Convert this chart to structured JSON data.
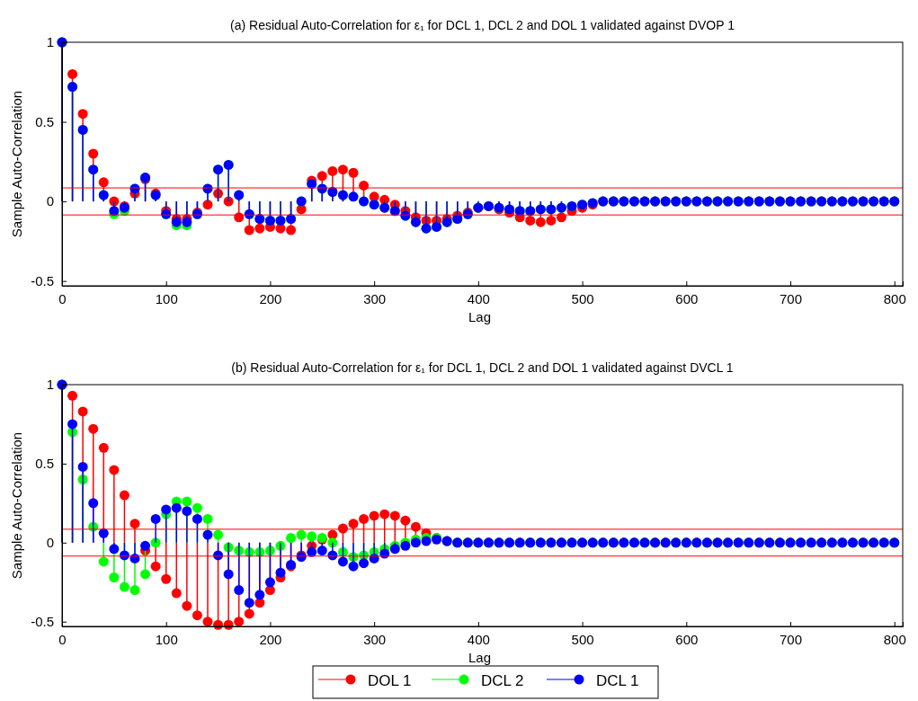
{
  "chart_data": [
    {
      "type": "lollipop",
      "title": "(a) Residual Auto-Correlation for ε₁ for DCL 1, DCL 2 and DOL 1 validated against DVOP 1",
      "xlabel": "Lag",
      "ylabel": "Sample Auto-Correlation",
      "x": [
        0,
        10,
        20,
        30,
        40,
        50,
        60,
        70,
        80,
        90,
        100,
        110,
        120,
        130,
        140,
        150,
        160,
        170,
        180,
        190,
        200,
        210,
        220,
        230,
        240,
        250,
        260,
        270,
        280,
        290,
        300,
        310,
        320,
        330,
        340,
        350,
        360,
        370,
        380,
        390,
        400,
        410,
        420,
        430,
        440,
        450,
        460,
        470,
        480,
        490,
        500,
        510,
        520,
        530,
        540,
        550,
        560,
        570,
        580,
        590,
        600,
        610,
        620,
        630,
        640,
        650,
        660,
        670,
        680,
        690,
        700,
        710,
        720,
        730,
        740,
        750,
        760,
        770,
        780,
        790,
        800
      ],
      "series": [
        {
          "color": "#ff0000",
          "values": [
            1,
            0.8,
            0.55,
            0.3,
            0.12,
            0,
            -0.03,
            0.05,
            0.14,
            0.05,
            -0.06,
            -0.11,
            -0.11,
            -0.07,
            -0.02,
            0.05,
            0,
            -0.1,
            -0.18,
            -0.17,
            -0.16,
            -0.17,
            -0.18,
            -0.05,
            0.13,
            0.16,
            0.19,
            0.2,
            0.18,
            0.1,
            0.03,
            0.01,
            -0.02,
            -0.06,
            -0.1,
            -0.12,
            -0.12,
            -0.11,
            -0.09,
            -0.07,
            -0.04,
            -0.03,
            -0.05,
            -0.07,
            -0.1,
            -0.12,
            -0.13,
            -0.12,
            -0.1,
            -0.06,
            -0.04,
            -0.02,
            0,
            0,
            0,
            0,
            0,
            0,
            0,
            0,
            0,
            0,
            0,
            0,
            0,
            0,
            0,
            0,
            0,
            0,
            0,
            0,
            0,
            0,
            0,
            0,
            0,
            0,
            0,
            0,
            0
          ]
        },
        {
          "color": "#00ff00",
          "values": [
            1,
            0.72,
            0.45,
            0.2,
            0.04,
            -0.08,
            -0.06,
            0.08,
            0.15,
            0.04,
            -0.08,
            -0.15,
            -0.15,
            -0.08,
            0.08,
            0.2,
            0.23,
            0.04,
            -0.08,
            -0.11,
            -0.12,
            -0.12,
            -0.11,
            0,
            0.11,
            0.08,
            0.06,
            0.04,
            0.03,
            0,
            -0.02,
            -0.04,
            -0.06,
            -0.09,
            -0.13,
            -0.17,
            -0.16,
            -0.13,
            -0.11,
            -0.08,
            -0.04,
            -0.03,
            -0.04,
            -0.05,
            -0.06,
            -0.06,
            -0.05,
            -0.05,
            -0.04,
            -0.03,
            -0.02,
            -0.01,
            0,
            0,
            0,
            0,
            0,
            0,
            0,
            0,
            0,
            0,
            0,
            0,
            0,
            0,
            0,
            0,
            0,
            0,
            0,
            0,
            0,
            0,
            0,
            0,
            0,
            0,
            0,
            0,
            0
          ]
        },
        {
          "color": "#0000ff",
          "values": [
            1,
            0.72,
            0.45,
            0.2,
            0.04,
            -0.06,
            -0.04,
            0.08,
            0.15,
            0.04,
            -0.08,
            -0.13,
            -0.13,
            -0.08,
            0.08,
            0.2,
            0.23,
            0.04,
            -0.08,
            -0.11,
            -0.12,
            -0.12,
            -0.11,
            0,
            0.11,
            0.08,
            0.06,
            0.04,
            0.03,
            0,
            -0.02,
            -0.04,
            -0.06,
            -0.09,
            -0.13,
            -0.17,
            -0.16,
            -0.13,
            -0.11,
            -0.08,
            -0.04,
            -0.03,
            -0.04,
            -0.05,
            -0.06,
            -0.06,
            -0.05,
            -0.05,
            -0.04,
            -0.03,
            -0.02,
            -0.01,
            0,
            0,
            0,
            0,
            0,
            0,
            0,
            0,
            0,
            0,
            0,
            0,
            0,
            0,
            0,
            0,
            0,
            0,
            0,
            0,
            0,
            0,
            0,
            0,
            0,
            0,
            0,
            0,
            0
          ]
        }
      ],
      "xlim": [
        0,
        808
      ],
      "xticks": [
        0,
        100,
        200,
        300,
        400,
        500,
        600,
        700,
        800
      ],
      "ylim": [
        -0.53,
        1
      ],
      "yticks": [
        -0.5,
        0,
        0.5,
        1
      ],
      "ref_lines": [
        {
          "axis": "y",
          "value": 0.085,
          "color": "#ff0000"
        },
        {
          "axis": "y",
          "value": -0.085,
          "color": "#ff0000"
        }
      ],
      "marker": "circle",
      "legend": false,
      "grid": false
    },
    {
      "type": "lollipop",
      "title": "(b) Residual Auto-Correlation for ε₁ for DCL 1, DCL 2 and DOL 1 validated against DVCL 1",
      "xlabel": "Lag",
      "ylabel": "Sample Auto-Correlation",
      "x": [
        0,
        10,
        20,
        30,
        40,
        50,
        60,
        70,
        80,
        90,
        100,
        110,
        120,
        130,
        140,
        150,
        160,
        170,
        180,
        190,
        200,
        210,
        220,
        230,
        240,
        250,
        260,
        270,
        280,
        290,
        300,
        310,
        320,
        330,
        340,
        350,
        360,
        370,
        380,
        390,
        400,
        410,
        420,
        430,
        440,
        450,
        460,
        470,
        480,
        490,
        500,
        510,
        520,
        530,
        540,
        550,
        560,
        570,
        580,
        590,
        600,
        610,
        620,
        630,
        640,
        650,
        660,
        670,
        680,
        690,
        700,
        710,
        720,
        730,
        740,
        750,
        760,
        770,
        780,
        790,
        800
      ],
      "series": [
        {
          "name": "DOL 1",
          "color": "#ff0000",
          "values": [
            1,
            0.93,
            0.83,
            0.72,
            0.6,
            0.46,
            0.3,
            0.12,
            -0.05,
            -0.15,
            -0.23,
            -0.32,
            -0.4,
            -0.46,
            -0.5,
            -0.52,
            -0.52,
            -0.5,
            -0.45,
            -0.38,
            -0.3,
            -0.22,
            -0.15,
            -0.08,
            -0.02,
            0.02,
            0.05,
            0.09,
            0.12,
            0.15,
            0.17,
            0.18,
            0.17,
            0.14,
            0.1,
            0.06,
            0.03,
            0.01,
            0,
            0,
            0,
            0,
            0,
            0,
            0,
            0,
            0,
            0,
            0,
            0,
            0,
            0,
            0,
            0,
            0,
            0,
            0,
            0,
            0,
            0,
            0,
            0,
            0,
            0,
            0,
            0,
            0,
            0,
            0,
            0,
            0,
            0,
            0,
            0,
            0,
            0,
            0,
            0,
            0,
            0,
            0
          ]
        },
        {
          "name": "DCL 2",
          "color": "#00ff00",
          "values": [
            1,
            0.7,
            0.4,
            0.1,
            -0.12,
            -0.22,
            -0.28,
            -0.3,
            -0.2,
            0,
            0.18,
            0.26,
            0.26,
            0.22,
            0.15,
            0.05,
            -0.03,
            -0.05,
            -0.06,
            -0.06,
            -0.05,
            -0.02,
            0.03,
            0.05,
            0.04,
            0.03,
            0,
            -0.06,
            -0.09,
            -0.08,
            -0.06,
            -0.04,
            -0.02,
            0,
            0.02,
            0.03,
            0.03,
            0.01,
            0,
            0,
            0,
            0,
            0,
            0,
            0,
            0,
            0,
            0,
            0,
            0,
            0,
            0,
            0,
            0,
            0,
            0,
            0,
            0,
            0,
            0,
            0,
            0,
            0,
            0,
            0,
            0,
            0,
            0,
            0,
            0,
            0,
            0,
            0,
            0,
            0,
            0,
            0,
            0,
            0,
            0,
            0
          ]
        },
        {
          "name": "DCL 1",
          "color": "#0000ff",
          "values": [
            1,
            0.75,
            0.48,
            0.25,
            0.06,
            -0.04,
            -0.08,
            -0.1,
            -0.02,
            0.15,
            0.21,
            0.22,
            0.2,
            0.15,
            0.05,
            -0.08,
            -0.2,
            -0.3,
            -0.38,
            -0.33,
            -0.25,
            -0.19,
            -0.14,
            -0.09,
            -0.06,
            -0.05,
            -0.08,
            -0.12,
            -0.15,
            -0.13,
            -0.1,
            -0.07,
            -0.04,
            -0.02,
            0,
            0.01,
            0.02,
            0.01,
            0,
            0,
            0,
            0,
            0,
            0,
            0,
            0,
            0,
            0,
            0,
            0,
            0,
            0,
            0,
            0,
            0,
            0,
            0,
            0,
            0,
            0,
            0,
            0,
            0,
            0,
            0,
            0,
            0,
            0,
            0,
            0,
            0,
            0,
            0,
            0,
            0,
            0,
            0,
            0,
            0,
            0,
            0
          ]
        }
      ],
      "xlim": [
        0,
        808
      ],
      "xticks": [
        0,
        100,
        200,
        300,
        400,
        500,
        600,
        700,
        800
      ],
      "ylim": [
        -0.53,
        1
      ],
      "yticks": [
        -0.5,
        0,
        0.5,
        1
      ],
      "ref_lines": [
        {
          "axis": "y",
          "value": 0.085,
          "color": "#ff0000"
        },
        {
          "axis": "y",
          "value": -0.085,
          "color": "#ff0000"
        }
      ],
      "marker": "circle",
      "legend": "bottom",
      "grid": false
    }
  ]
}
